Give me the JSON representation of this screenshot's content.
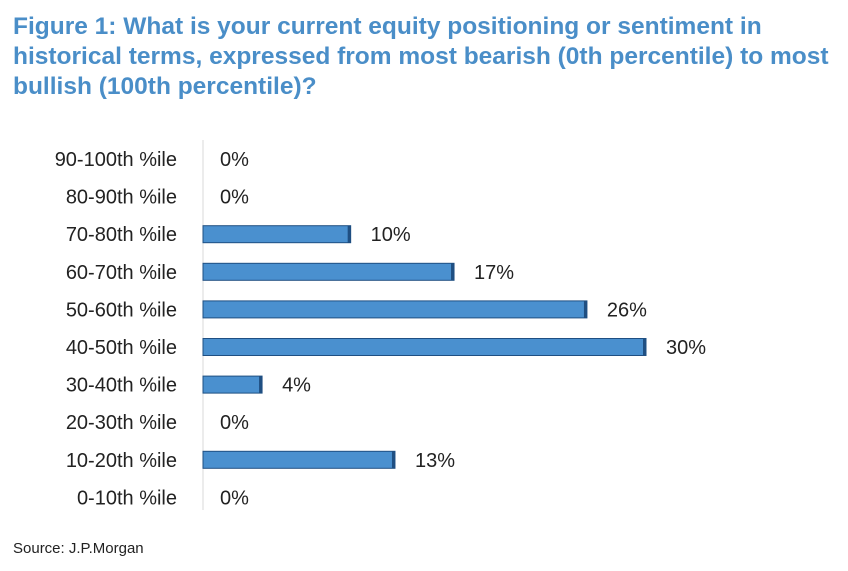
{
  "title": "Figure 1: What is your current equity positioning or sentiment in historical terms, expressed from most bearish (0th percentile) to most bullish (100th percentile)?",
  "source": "Source: J.P.Morgan",
  "colors": {
    "title": "#4a8ec8",
    "bar": "#4a90cf",
    "bar_edge": "#1f4f82"
  },
  "chart_data": {
    "type": "bar",
    "orientation": "horizontal",
    "title": "Figure 1: What is your current equity positioning or sentiment in historical terms, expressed from most bearish (0th percentile) to most bullish (100th percentile)?",
    "categories": [
      "90-100th %ile",
      "80-90th %ile",
      "70-80th %ile",
      "60-70th %ile",
      "50-60th %ile",
      "40-50th %ile",
      "30-40th %ile",
      "20-30th %ile",
      "10-20th %ile",
      "0-10th %ile"
    ],
    "values": [
      0,
      0,
      10,
      17,
      26,
      30,
      4,
      0,
      13,
      0
    ],
    "data_labels": [
      "0%",
      "0%",
      "10%",
      "17%",
      "26%",
      "30%",
      "4%",
      "0%",
      "13%",
      "0%"
    ],
    "xlim": [
      0,
      30
    ],
    "grid": false,
    "legend": "none"
  }
}
